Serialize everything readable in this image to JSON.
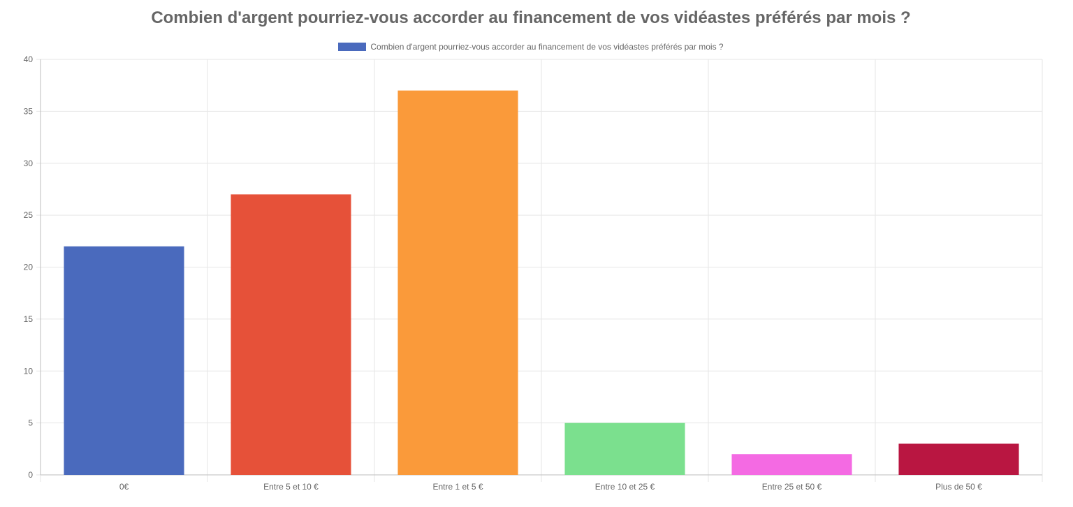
{
  "chart_data": {
    "type": "bar",
    "title": "Combien d'argent pourriez-vous accorder au financement de vos vidéastes préférés par mois ?",
    "legend": "Combien d'argent pourriez-vous accorder au financement de vos vidéastes préférés par mois ?",
    "legend_color": "#4a6abd",
    "legend_position": "top",
    "categories": [
      "0€",
      "Entre 5 et 10 €",
      "Entre 1 et 5 €",
      "Entre 10 et 25 €",
      "Entre 25 et 50 €",
      "Plus de 50 €"
    ],
    "values": [
      22,
      27,
      37,
      5,
      2,
      3
    ],
    "colors": [
      "#4a6abd",
      "#e65139",
      "#fa9a3a",
      "#7be08e",
      "#f46ae3",
      "#b91641"
    ],
    "ylim": [
      0,
      40
    ],
    "yticks": [
      "0",
      "5",
      "10",
      "15",
      "20",
      "25",
      "30",
      "35",
      "40"
    ],
    "grid": true
  }
}
